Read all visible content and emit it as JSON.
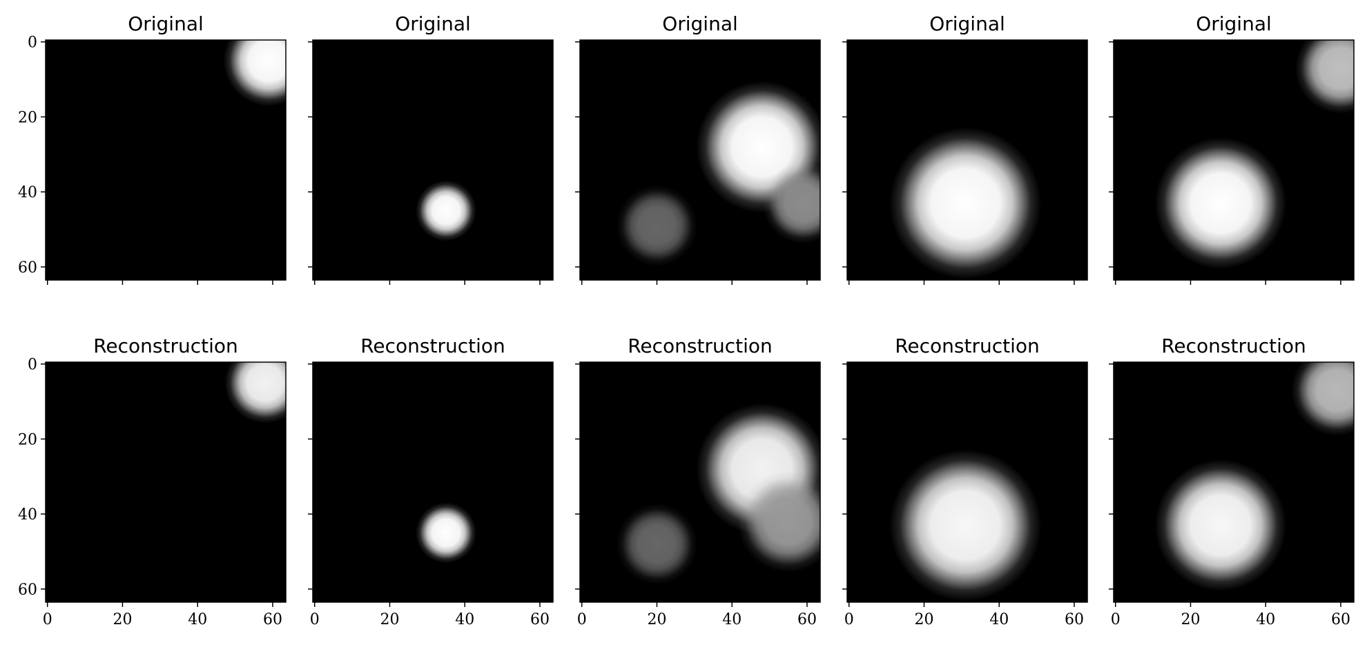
{
  "figure": {
    "rows": [
      {
        "title": "Original"
      },
      {
        "title": "Reconstruction"
      }
    ]
  },
  "chart_data": {
    "type": "heatmap",
    "colormap": "gray",
    "layout": "2 rows x 5 columns image grid",
    "image_size": [
      64,
      64
    ],
    "xlim": [
      0,
      63
    ],
    "ylim": [
      63,
      0
    ],
    "xticks": [
      0,
      20,
      40,
      60
    ],
    "yticks": [
      0,
      20,
      40,
      60
    ],
    "x_tick_labels_shown_on": "bottom row only",
    "y_tick_labels_shown_on": "first column only",
    "panels": [
      {
        "row": 0,
        "column": 0,
        "title": "Original",
        "blobs": [
          {
            "cx": 59,
            "cy": 5,
            "r": 9,
            "intensity": 1.0
          }
        ]
      },
      {
        "row": 0,
        "column": 1,
        "title": "Original",
        "blobs": [
          {
            "cx": 35,
            "cy": 45,
            "r": 6,
            "intensity": 1.0
          }
        ]
      },
      {
        "row": 0,
        "column": 2,
        "title": "Original",
        "blobs": [
          {
            "cx": 48,
            "cy": 28,
            "r": 13,
            "intensity": 1.0
          },
          {
            "cx": 59,
            "cy": 43,
            "r": 8,
            "intensity": 0.55
          },
          {
            "cx": 20,
            "cy": 49,
            "r": 8,
            "intensity": 0.4
          }
        ]
      },
      {
        "row": 0,
        "column": 3,
        "title": "Original",
        "blobs": [
          {
            "cx": 31,
            "cy": 43,
            "r": 15,
            "intensity": 1.0
          }
        ]
      },
      {
        "row": 0,
        "column": 4,
        "title": "Original",
        "blobs": [
          {
            "cx": 28,
            "cy": 43,
            "r": 13,
            "intensity": 1.0
          },
          {
            "cx": 60,
            "cy": 7,
            "r": 9,
            "intensity": 0.75
          }
        ]
      },
      {
        "row": 1,
        "column": 0,
        "title": "Reconstruction",
        "blobs": [
          {
            "cx": 58,
            "cy": 5,
            "r": 8,
            "intensity": 0.95
          }
        ]
      },
      {
        "row": 1,
        "column": 1,
        "title": "Reconstruction",
        "blobs": [
          {
            "cx": 35,
            "cy": 45,
            "r": 6,
            "intensity": 1.0
          }
        ]
      },
      {
        "row": 1,
        "column": 2,
        "title": "Reconstruction",
        "blobs": [
          {
            "cx": 48,
            "cy": 28,
            "r": 13,
            "intensity": 0.95
          },
          {
            "cx": 55,
            "cy": 42,
            "r": 10,
            "intensity": 0.6
          },
          {
            "cx": 20,
            "cy": 48,
            "r": 8,
            "intensity": 0.4
          }
        ]
      },
      {
        "row": 1,
        "column": 3,
        "title": "Reconstruction",
        "blobs": [
          {
            "cx": 31,
            "cy": 43,
            "r": 15,
            "intensity": 0.97
          }
        ]
      },
      {
        "row": 1,
        "column": 4,
        "title": "Reconstruction",
        "blobs": [
          {
            "cx": 28,
            "cy": 43,
            "r": 13,
            "intensity": 0.97
          },
          {
            "cx": 59,
            "cy": 7,
            "r": 9,
            "intensity": 0.72
          }
        ]
      }
    ]
  }
}
